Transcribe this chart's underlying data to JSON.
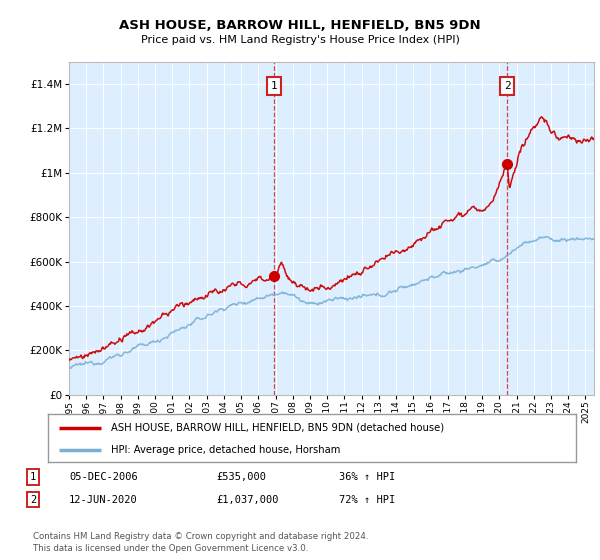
{
  "title": "ASH HOUSE, BARROW HILL, HENFIELD, BN5 9DN",
  "subtitle": "Price paid vs. HM Land Registry's House Price Index (HPI)",
  "legend_line1": "ASH HOUSE, BARROW HILL, HENFIELD, BN5 9DN (detached house)",
  "legend_line2": "HPI: Average price, detached house, Horsham",
  "sale1_date": "05-DEC-2006",
  "sale1_price": "£535,000",
  "sale1_pct": "36% ↑ HPI",
  "sale1_year": 2006.92,
  "sale1_value": 535000,
  "sale2_date": "12-JUN-2020",
  "sale2_price": "£1,037,000",
  "sale2_pct": "72% ↑ HPI",
  "sale2_year": 2020.45,
  "sale2_value": 1037000,
  "footnote1": "Contains HM Land Registry data © Crown copyright and database right 2024.",
  "footnote2": "This data is licensed under the Open Government Licence v3.0.",
  "red_color": "#cc0000",
  "blue_color": "#7ab0d4",
  "background_color": "#ddeeff",
  "ylim": [
    0,
    1500000
  ],
  "xlim_start": 1995,
  "xlim_end": 2025.5,
  "chart_bg": "#e8f0f8"
}
